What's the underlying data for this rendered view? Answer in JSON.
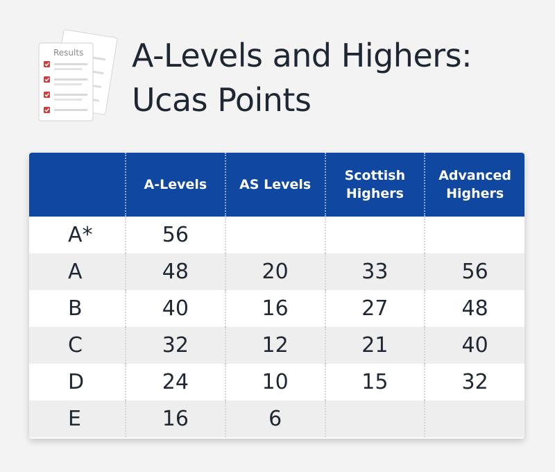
{
  "header": {
    "icon_label": "Results",
    "title_line1": "A-Levels and Highers:",
    "title_line2": "Ucas Points"
  },
  "colors": {
    "header_blue": "#0f47a1",
    "check_red": "#d33a3a",
    "row_alt": "#eeeeee",
    "background": "#f3f3f3"
  },
  "table": {
    "columns": [
      "",
      "A-Levels",
      "AS Levels",
      "Scottish Highers",
      "Advanced Highers"
    ],
    "column_lines": [
      [
        ""
      ],
      [
        "A-Levels"
      ],
      [
        "AS Levels"
      ],
      [
        "Scottish",
        "Highers"
      ],
      [
        "Advanced",
        "Highers"
      ]
    ],
    "rows": [
      {
        "grade": "A*",
        "a_levels": "56",
        "as_levels": "",
        "scottish_highers": "",
        "advanced_highers": ""
      },
      {
        "grade": "A",
        "a_levels": "48",
        "as_levels": "20",
        "scottish_highers": "33",
        "advanced_highers": "56"
      },
      {
        "grade": "B",
        "a_levels": "40",
        "as_levels": "16",
        "scottish_highers": "27",
        "advanced_highers": "48"
      },
      {
        "grade": "C",
        "a_levels": "32",
        "as_levels": "12",
        "scottish_highers": "21",
        "advanced_highers": "40"
      },
      {
        "grade": "D",
        "a_levels": "24",
        "as_levels": "10",
        "scottish_highers": "15",
        "advanced_highers": "32"
      },
      {
        "grade": "E",
        "a_levels": "16",
        "as_levels": "6",
        "scottish_highers": "",
        "advanced_highers": ""
      }
    ]
  }
}
